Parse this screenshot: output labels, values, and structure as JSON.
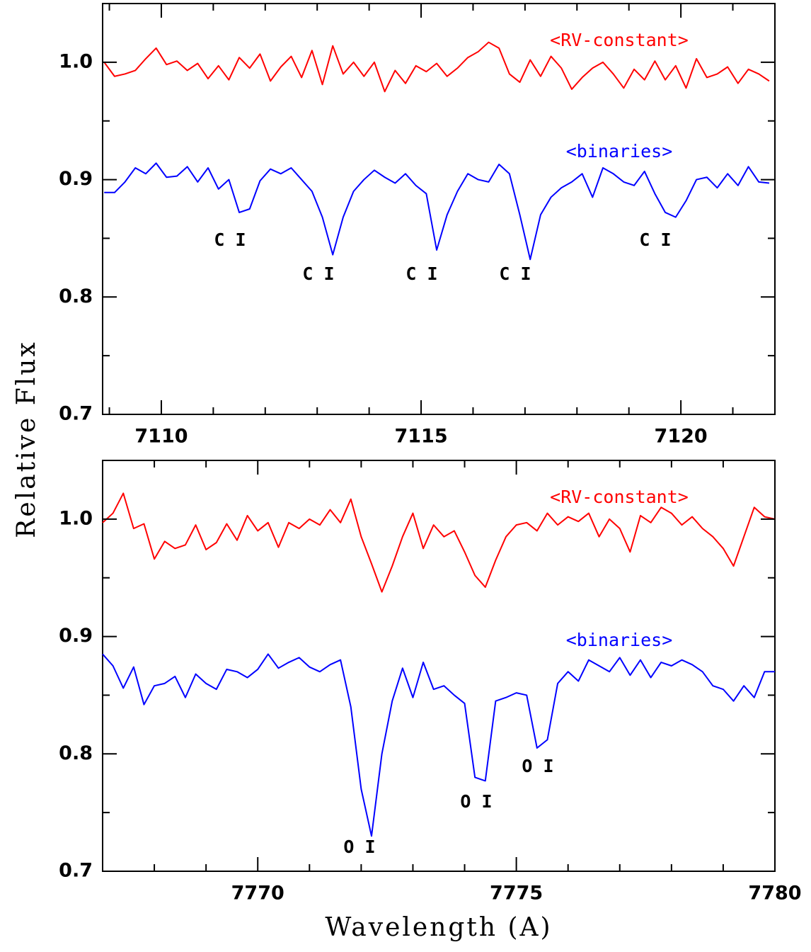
{
  "chart_data": [
    {
      "type": "line",
      "y_label": "Relative Flux",
      "x": [
        7108.9,
        7109.1,
        7109.3,
        7109.5,
        7109.7,
        7109.9,
        7110.1,
        7110.3,
        7110.5,
        7110.7,
        7110.9,
        7111.1,
        7111.3,
        7111.5,
        7111.7,
        7111.9,
        7112.1,
        7112.3,
        7112.5,
        7112.7,
        7112.9,
        7113.1,
        7113.3,
        7113.5,
        7113.7,
        7113.9,
        7114.1,
        7114.3,
        7114.5,
        7114.7,
        7114.9,
        7115.1,
        7115.3,
        7115.5,
        7115.7,
        7115.9,
        7116.1,
        7116.3,
        7116.5,
        7116.7,
        7116.9,
        7117.1,
        7117.3,
        7117.5,
        7117.7,
        7117.9,
        7118.1,
        7118.3,
        7118.5,
        7118.7,
        7118.9,
        7119.1,
        7119.3,
        7119.5,
        7119.7,
        7119.9,
        7120.1,
        7120.3,
        7120.5,
        7120.7,
        7120.9,
        7121.1,
        7121.3,
        7121.5,
        7121.7
      ],
      "series": [
        {
          "name": "<RV-constant>",
          "color": "#ff0000",
          "values": [
            1.0,
            0.988,
            0.99,
            0.993,
            1.003,
            1.012,
            0.998,
            1.001,
            0.993,
            0.999,
            0.986,
            0.997,
            0.985,
            1.004,
            0.995,
            1.007,
            0.984,
            0.996,
            1.005,
            0.987,
            1.01,
            0.981,
            1.014,
            0.99,
            1.0,
            0.988,
            1.0,
            0.975,
            0.993,
            0.982,
            0.997,
            0.992,
            0.999,
            0.988,
            0.995,
            1.004,
            1.009,
            1.017,
            1.012,
            0.99,
            0.983,
            1.002,
            0.988,
            1.005,
            0.995,
            0.977,
            0.987,
            0.995,
            1.0,
            0.99,
            0.978,
            0.994,
            0.985,
            1.001,
            0.985,
            0.997,
            0.978,
            1.003,
            0.987,
            0.99,
            0.996,
            0.982,
            0.994,
            0.99,
            0.984
          ]
        },
        {
          "name": "<binaries>",
          "color": "#0000ff",
          "values": [
            0.889,
            0.889,
            0.898,
            0.91,
            0.905,
            0.914,
            0.902,
            0.903,
            0.911,
            0.898,
            0.91,
            0.892,
            0.9,
            0.872,
            0.875,
            0.899,
            0.909,
            0.905,
            0.91,
            0.9,
            0.89,
            0.868,
            0.836,
            0.868,
            0.89,
            0.9,
            0.908,
            0.902,
            0.897,
            0.905,
            0.895,
            0.888,
            0.84,
            0.87,
            0.89,
            0.905,
            0.9,
            0.898,
            0.913,
            0.905,
            0.87,
            0.832,
            0.87,
            0.885,
            0.893,
            0.898,
            0.905,
            0.885,
            0.91,
            0.905,
            0.898,
            0.895,
            0.907,
            0.888,
            0.872,
            0.868,
            0.882,
            0.9,
            0.902,
            0.893,
            0.905,
            0.895,
            0.911,
            0.898,
            0.897
          ]
        }
      ],
      "annotations": [
        "C I",
        "C I",
        "C I",
        "C I",
        "C I"
      ],
      "xlim": [
        7108.87,
        7121.81
      ],
      "xticks": [
        7110,
        7115,
        7120
      ],
      "xminorticks": [
        7109,
        7111,
        7112,
        7113,
        7114,
        7116,
        7117,
        7118,
        7119,
        7121
      ],
      "ylim": [
        0.7,
        1.05
      ],
      "yticks": [
        0.7,
        0.8,
        0.9,
        {
          "value": 1,
          "label": "1.0"
        }
      ],
      "yminorticks": [
        0.75,
        0.85,
        0.95
      ]
    },
    {
      "type": "line",
      "x_label": "Wavelength (A)",
      "x": [
        7767.0,
        7767.2,
        7767.4,
        7767.6,
        7767.8,
        7768.0,
        7768.2,
        7768.4,
        7768.6,
        7768.8,
        7769.0,
        7769.2,
        7769.4,
        7769.6,
        7769.8,
        7770.0,
        7770.2,
        7770.4,
        7770.6,
        7770.8,
        7771.0,
        7771.2,
        7771.4,
        7771.6,
        7771.8,
        7772.0,
        7772.2,
        7772.4,
        7772.6,
        7772.8,
        7773.0,
        7773.2,
        7773.4,
        7773.6,
        7773.8,
        7774.0,
        7774.2,
        7774.4,
        7774.6,
        7774.8,
        7775.0,
        7775.2,
        7775.4,
        7775.6,
        7775.8,
        7776.0,
        7776.2,
        7776.4,
        7776.6,
        7776.8,
        7777.0,
        7777.2,
        7777.4,
        7777.6,
        7777.8,
        7778.0,
        7778.2,
        7778.4,
        7778.6,
        7778.8,
        7779.0,
        7779.2,
        7779.4,
        7779.6,
        7779.8,
        7780.0
      ],
      "series": [
        {
          "name": "<RV-constant>",
          "color": "#ff0000",
          "values": [
            0.997,
            1.005,
            1.022,
            0.992,
            0.996,
            0.966,
            0.981,
            0.975,
            0.978,
            0.995,
            0.974,
            0.98,
            0.996,
            0.982,
            1.003,
            0.99,
            0.997,
            0.976,
            0.997,
            0.992,
            1.0,
            0.995,
            1.008,
            0.997,
            1.017,
            0.985,
            0.962,
            0.938,
            0.96,
            0.985,
            1.005,
            0.975,
            0.995,
            0.985,
            0.99,
            0.972,
            0.952,
            0.942,
            0.965,
            0.985,
            0.995,
            0.997,
            0.99,
            1.005,
            0.995,
            1.002,
            0.998,
            1.005,
            0.985,
            1.0,
            0.992,
            0.972,
            1.003,
            0.997,
            1.01,
            1.005,
            0.995,
            1.002,
            0.992,
            0.985,
            0.975,
            0.96,
            0.985,
            1.01,
            1.002,
            1.0
          ]
        },
        {
          "name": "<binaries>",
          "color": "#0000ff",
          "values": [
            0.885,
            0.875,
            0.856,
            0.874,
            0.842,
            0.858,
            0.86,
            0.866,
            0.848,
            0.868,
            0.86,
            0.855,
            0.872,
            0.87,
            0.865,
            0.872,
            0.885,
            0.873,
            0.878,
            0.882,
            0.874,
            0.87,
            0.876,
            0.88,
            0.84,
            0.77,
            0.73,
            0.8,
            0.845,
            0.873,
            0.848,
            0.878,
            0.855,
            0.858,
            0.85,
            0.843,
            0.78,
            0.777,
            0.845,
            0.848,
            0.852,
            0.85,
            0.805,
            0.812,
            0.86,
            0.87,
            0.862,
            0.88,
            0.875,
            0.87,
            0.882,
            0.867,
            0.88,
            0.865,
            0.878,
            0.875,
            0.88,
            0.876,
            0.87,
            0.858,
            0.855,
            0.845,
            0.858,
            0.848,
            0.87,
            0.87
          ]
        }
      ],
      "annotations": [
        "O I",
        "O I",
        "O I"
      ],
      "xlim": [
        7767,
        7780
      ],
      "xticks": [
        7770,
        7775,
        7780
      ],
      "xminorticks": [
        7768,
        7769,
        7771,
        7772,
        7773,
        7774,
        7776,
        7777,
        7778,
        7779
      ],
      "ylim": [
        0.7,
        1.05
      ],
      "yticks": [
        0.7,
        0.8,
        0.9,
        {
          "value": 1,
          "label": "1.0"
        }
      ],
      "yminorticks": [
        0.75,
        0.85,
        0.95
      ]
    }
  ]
}
